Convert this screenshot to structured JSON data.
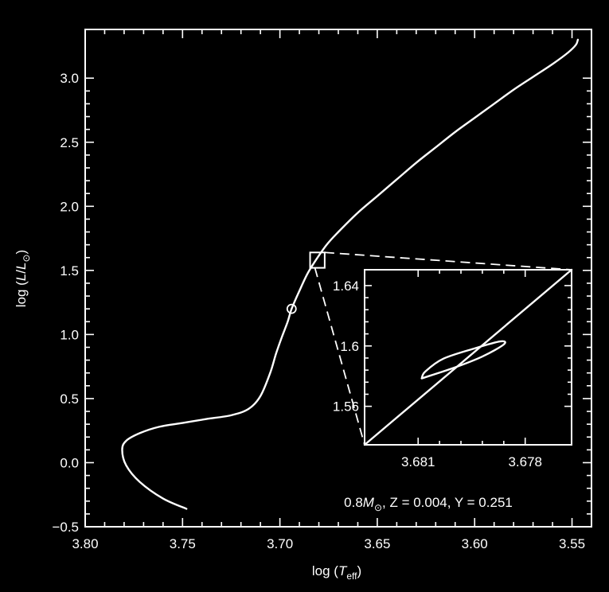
{
  "chart_data": [
    {
      "type": "line",
      "xlabel_prefix": "log (",
      "xlabel_var": "T",
      "xlabel_sub": "eff",
      "xlabel_suffix": ")",
      "ylabel_prefix": "log (",
      "ylabel_var": "L",
      "ylabel_slash": "/",
      "ylabel_var2": "L",
      "ylabel_sub": "⊙",
      "ylabel_suffix": ")",
      "xlim": [
        3.8,
        3.54
      ],
      "ylim": [
        -0.5,
        3.38
      ],
      "x_reversed": true,
      "x_ticks": [
        3.8,
        3.75,
        3.7,
        3.65,
        3.6,
        3.55
      ],
      "x_tick_labels": [
        "3.80",
        "3.75",
        "3.70",
        "3.65",
        "3.60",
        "3.55"
      ],
      "y_ticks": [
        -0.5,
        0.0,
        0.5,
        1.0,
        1.5,
        2.0,
        2.5,
        3.0
      ],
      "y_tick_labels": [
        "−0.5",
        "0.0",
        "0.5",
        "1.0",
        "1.5",
        "2.0",
        "2.5",
        "3.0"
      ],
      "annotation": {
        "mass_prefix": "0.8",
        "mass_var": "M",
        "mass_sub": "⊙",
        "z_part": ", Z = 0.004, ",
        "y_part": "Y = 0.251"
      },
      "marker_point": {
        "x": 3.694,
        "y": 1.2
      },
      "zoom_box": {
        "x": [
          3.6845,
          3.677
        ],
        "y": [
          1.52,
          1.64
        ]
      },
      "series": [
        {
          "x": [
            3.748,
            3.76,
            3.772,
            3.779,
            3.781,
            3.779,
            3.772,
            3.762,
            3.75,
            3.738,
            3.725,
            3.716,
            3.71,
            3.705,
            3.702,
            3.699,
            3.696,
            3.694,
            3.69,
            3.686,
            3.682,
            3.676,
            3.67,
            3.66,
            3.65,
            3.64,
            3.63,
            3.62,
            3.61,
            3.6,
            3.59,
            3.58,
            3.57,
            3.56,
            3.552,
            3.548,
            3.547
          ],
          "y": [
            -0.36,
            -0.28,
            -0.15,
            -0.02,
            0.1,
            0.17,
            0.23,
            0.28,
            0.31,
            0.34,
            0.37,
            0.42,
            0.52,
            0.7,
            0.85,
            0.98,
            1.1,
            1.2,
            1.34,
            1.47,
            1.57,
            1.7,
            1.8,
            1.95,
            2.08,
            2.21,
            2.34,
            2.46,
            2.58,
            2.69,
            2.8,
            2.91,
            3.01,
            3.11,
            3.2,
            3.26,
            3.3
          ]
        }
      ]
    },
    {
      "type": "line",
      "title": "inset",
      "xlim": [
        3.6825,
        3.6767
      ],
      "ylim": [
        1.5345,
        1.6505
      ],
      "x_reversed": true,
      "x_ticks": [
        3.681,
        3.678
      ],
      "x_tick_labels": [
        "3.681",
        "3.678"
      ],
      "y_ticks": [
        1.56,
        1.6,
        1.64
      ],
      "y_tick_labels": [
        "1.56",
        "1.6",
        "1.64"
      ],
      "series": [
        {
          "name": "track",
          "x": [
            3.6825,
            3.6767
          ],
          "y": [
            1.5345,
            1.6505
          ]
        },
        {
          "name": "loop",
          "x": [
            3.6809,
            3.68,
            3.6792,
            3.6786,
            3.6787,
            3.6794,
            3.6803,
            3.6808,
            3.6809
          ],
          "y": [
            1.5785,
            1.5855,
            1.593,
            1.601,
            1.603,
            1.5985,
            1.5915,
            1.583,
            1.5785
          ]
        }
      ]
    }
  ]
}
